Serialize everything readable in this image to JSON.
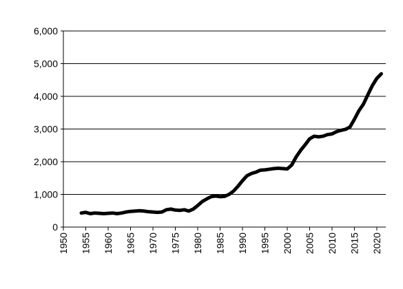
{
  "chart_data": {
    "type": "line",
    "color": "#000000",
    "grid": true,
    "x": [
      1954,
      1955,
      1956,
      1957,
      1958,
      1959,
      1960,
      1961,
      1962,
      1963,
      1964,
      1965,
      1966,
      1967,
      1968,
      1969,
      1970,
      1971,
      1972,
      1973,
      1974,
      1975,
      1976,
      1977,
      1978,
      1979,
      1980,
      1981,
      1982,
      1983,
      1984,
      1985,
      1986,
      1987,
      1988,
      1989,
      1990,
      1991,
      1992,
      1993,
      1994,
      1995,
      1996,
      1997,
      1998,
      1999,
      2000,
      2001,
      2002,
      2003,
      2004,
      2005,
      2006,
      2007,
      2008,
      2009,
      2010,
      2011,
      2012,
      2013,
      2014,
      2015,
      2016,
      2017,
      2018,
      2019,
      2020,
      2021
    ],
    "values": [
      430,
      450,
      410,
      430,
      420,
      410,
      420,
      430,
      410,
      430,
      460,
      480,
      490,
      500,
      490,
      470,
      460,
      450,
      460,
      530,
      550,
      520,
      510,
      530,
      490,
      550,
      660,
      780,
      860,
      930,
      950,
      930,
      940,
      1000,
      1100,
      1250,
      1420,
      1570,
      1640,
      1680,
      1740,
      1750,
      1770,
      1790,
      1800,
      1790,
      1780,
      1900,
      2150,
      2350,
      2520,
      2700,
      2780,
      2760,
      2780,
      2830,
      2850,
      2920,
      2960,
      2990,
      3060,
      3300,
      3560,
      3760,
      4050,
      4330,
      4550,
      4690
    ],
    "xlim": [
      1950,
      2022
    ],
    "xticks": [
      1950,
      1955,
      1960,
      1965,
      1970,
      1975,
      1980,
      1985,
      1990,
      1995,
      2000,
      2005,
      2010,
      2015,
      2020
    ],
    "ylim": [
      0,
      6000
    ],
    "yticks": [
      0,
      {
        "value": 1000,
        "label": "1,000"
      },
      {
        "value": 2000,
        "label": "2,000"
      },
      {
        "value": 3000,
        "label": "3,000"
      },
      {
        "value": 4000,
        "label": "4,000"
      },
      {
        "value": 5000,
        "label": "5,000"
      },
      {
        "value": 6000,
        "label": "6,000"
      }
    ]
  }
}
